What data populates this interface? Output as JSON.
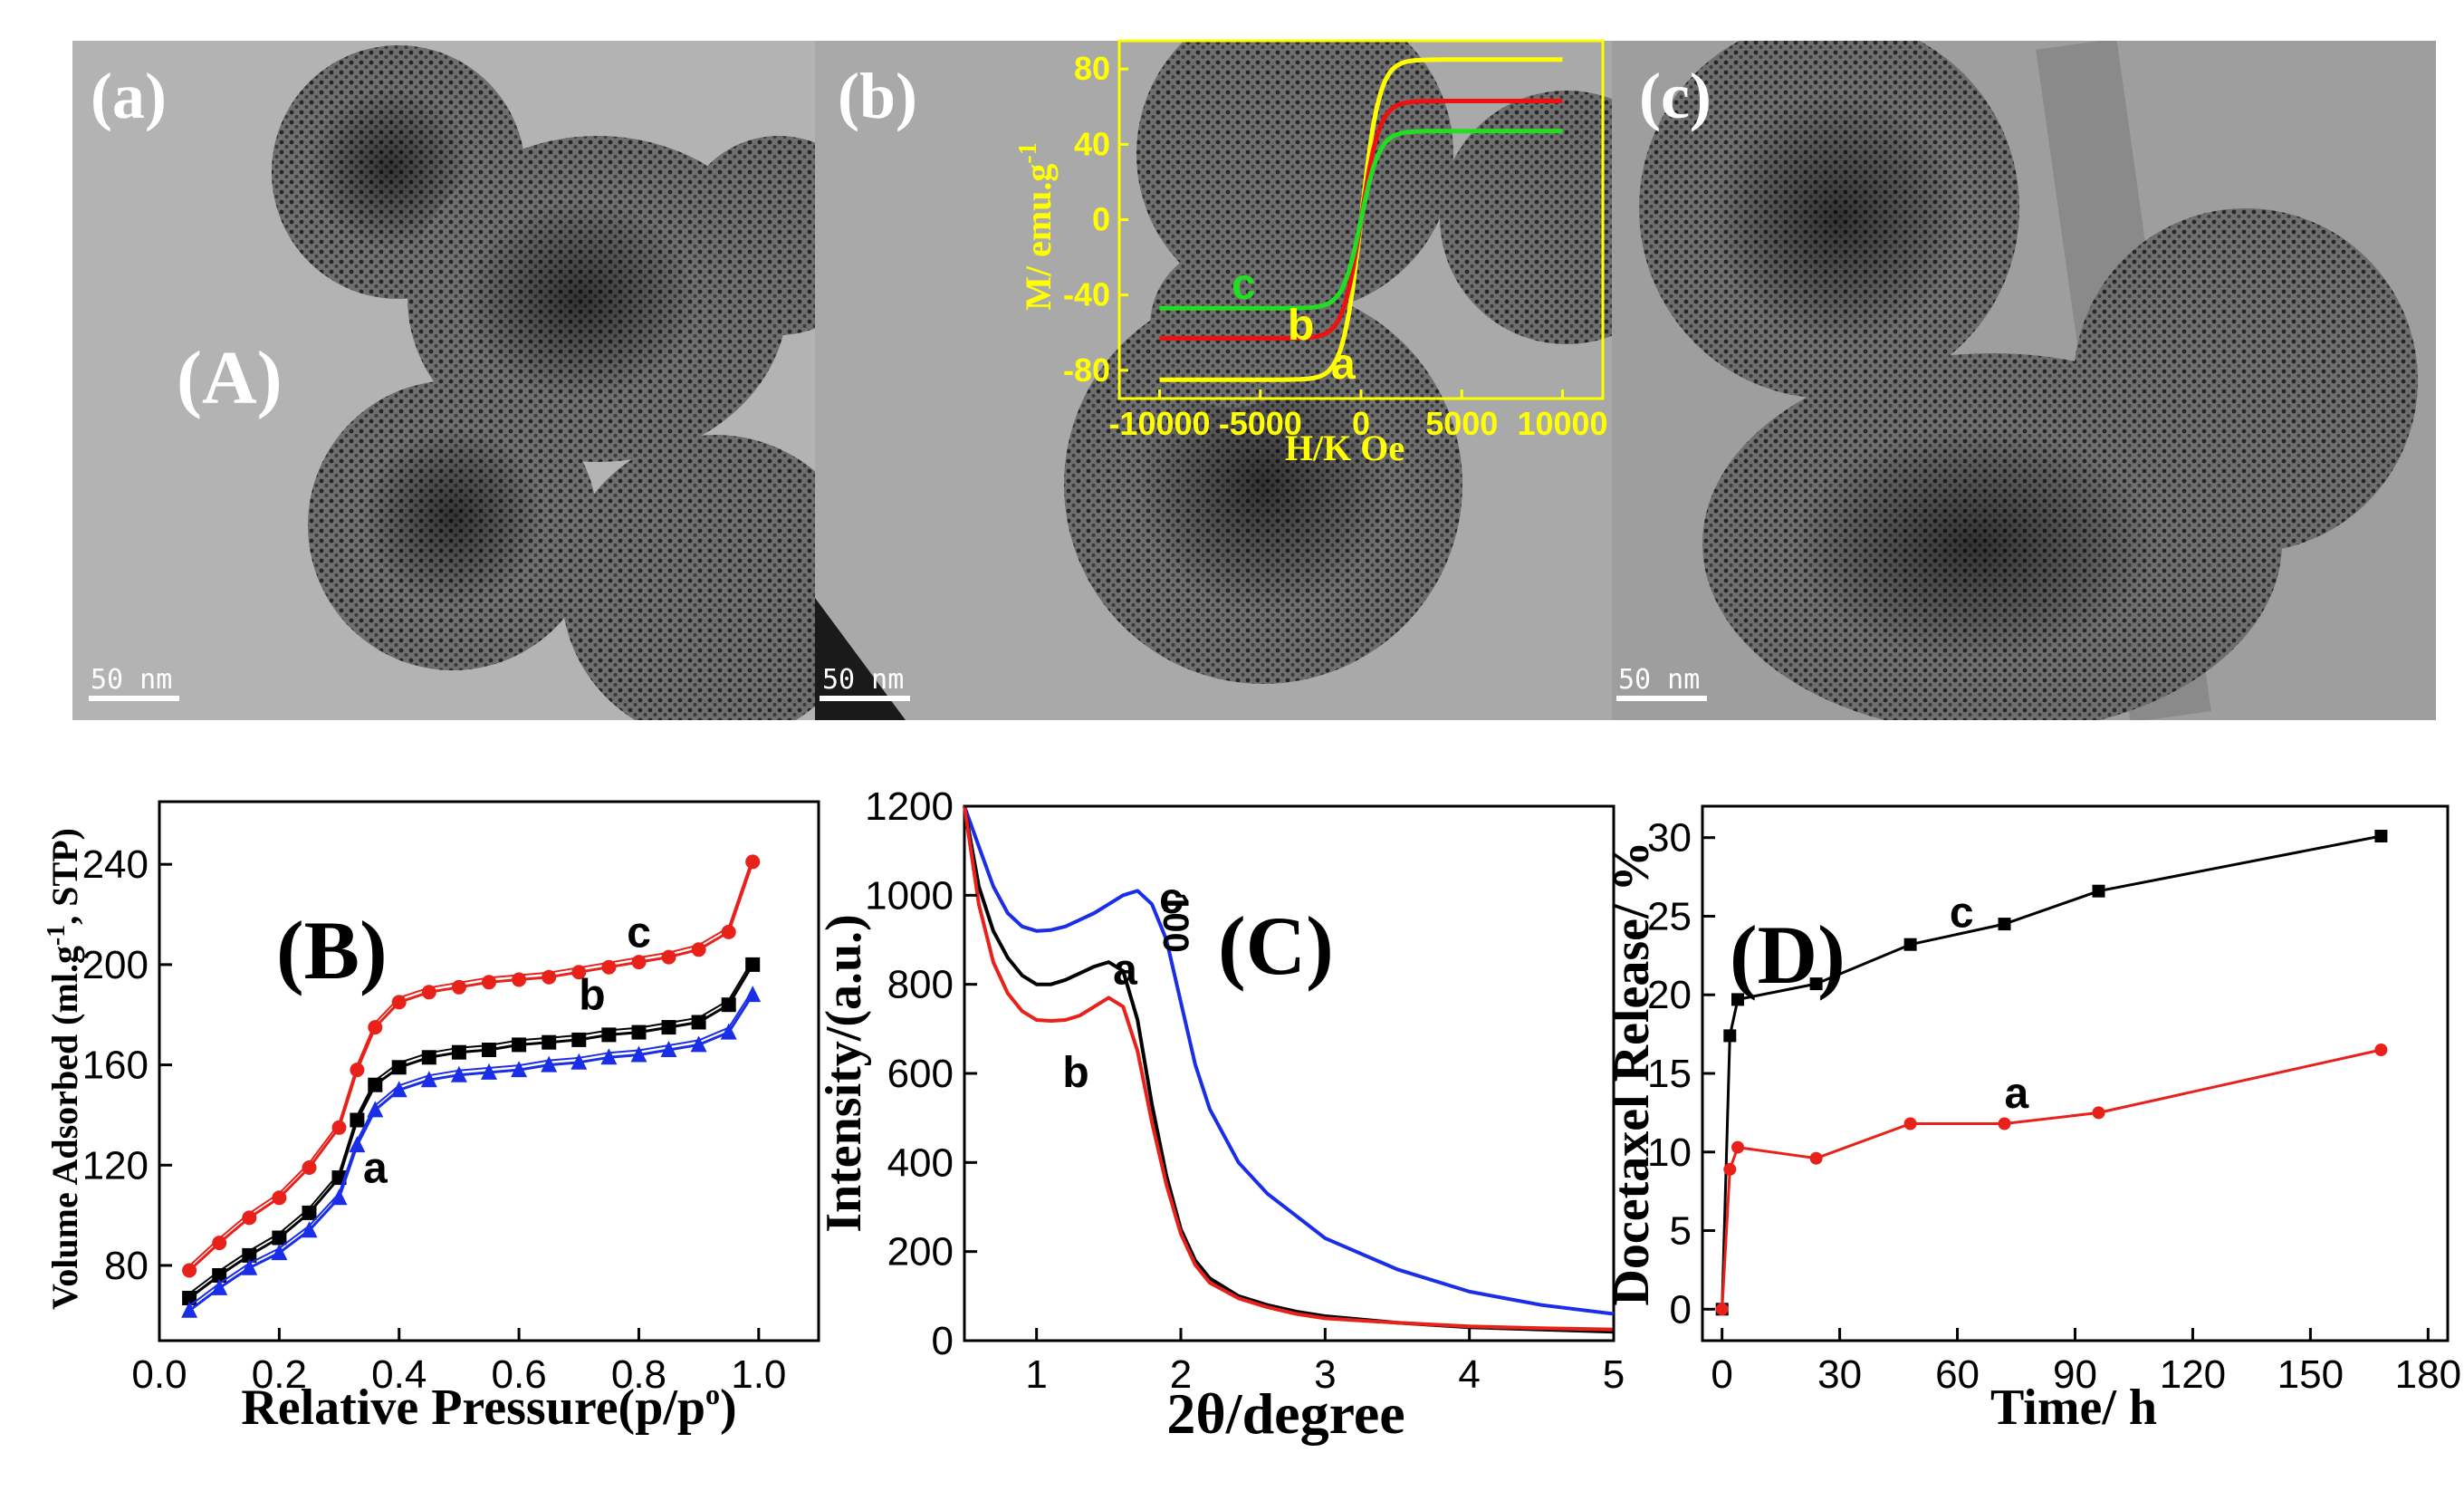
{
  "tem": {
    "panels": [
      {
        "label": "(a)",
        "scale_bar": "50 nm"
      },
      {
        "label": "(b)",
        "scale_bar": "50 nm"
      },
      {
        "label": "(c)",
        "scale_bar": "50 nm"
      }
    ],
    "figure_label": "(A)"
  },
  "colors": {
    "red": "#e8211a",
    "black": "#000000",
    "blue": "#1a2ee8",
    "yellow": "#ffff00",
    "green": "#22dd22",
    "inset_red": "#ee1111"
  },
  "chart_data": [
    {
      "id": "inset",
      "type": "line",
      "xlabel": "H/K Oe",
      "ylabel": "M/ emu.g-1",
      "xlim": [
        -12000,
        12000
      ],
      "ylim": [
        -95,
        95
      ],
      "xticks": [
        "-10000",
        "-5000",
        "0",
        "5000",
        "10000"
      ],
      "yticks": [
        "-80",
        "-40",
        "0",
        "40",
        "80"
      ],
      "series": [
        {
          "name": "a",
          "Ms": 85
        },
        {
          "name": "b",
          "Ms": 63
        },
        {
          "name": "c",
          "Ms": 47
        }
      ]
    },
    {
      "id": "B",
      "panel_label": "(B)",
      "type": "line",
      "xlabel": "Relative Pressure(p/p°)",
      "ylabel": "Volume Adsorbed (ml.g-1, STP)",
      "xlim": [
        0.0,
        1.1
      ],
      "ylim": [
        50,
        265
      ],
      "xticks": [
        "0.0",
        "0.2",
        "0.4",
        "0.6",
        "0.8",
        "1.0"
      ],
      "yticks": [
        "80",
        "120",
        "160",
        "200",
        "240"
      ],
      "series": [
        {
          "name": "c",
          "marker": "circle",
          "x": [
            0.05,
            0.1,
            0.15,
            0.2,
            0.25,
            0.3,
            0.33,
            0.36,
            0.4,
            0.45,
            0.5,
            0.55,
            0.6,
            0.65,
            0.7,
            0.75,
            0.8,
            0.85,
            0.9,
            0.95,
            0.99
          ],
          "y": [
            78,
            89,
            99,
            107,
            119,
            135,
            158,
            175,
            185,
            189,
            191,
            193,
            194,
            195,
            197,
            199,
            201,
            203,
            206,
            213,
            241
          ]
        },
        {
          "name": "b",
          "marker": "square",
          "x": [
            0.05,
            0.1,
            0.15,
            0.2,
            0.25,
            0.3,
            0.33,
            0.36,
            0.4,
            0.45,
            0.5,
            0.55,
            0.6,
            0.65,
            0.7,
            0.75,
            0.8,
            0.85,
            0.9,
            0.95,
            0.99
          ],
          "y": [
            67,
            76,
            84,
            91,
            101,
            115,
            138,
            152,
            159,
            163,
            165,
            166,
            168,
            169,
            170,
            172,
            173,
            175,
            177,
            184,
            200
          ]
        },
        {
          "name": "a",
          "marker": "triangle",
          "x": [
            0.05,
            0.1,
            0.15,
            0.2,
            0.25,
            0.3,
            0.33,
            0.36,
            0.4,
            0.45,
            0.5,
            0.55,
            0.6,
            0.65,
            0.7,
            0.75,
            0.8,
            0.85,
            0.9,
            0.95,
            0.99
          ],
          "y": [
            62,
            71,
            79,
            85,
            94,
            107,
            128,
            142,
            150,
            154,
            156,
            157,
            158,
            160,
            161,
            163,
            164,
            166,
            168,
            173,
            188
          ]
        }
      ]
    },
    {
      "id": "C",
      "panel_label": "(C)",
      "type": "line",
      "xlabel": "2θ/degree",
      "ylabel": "Intensity/(a.u.)",
      "xlim": [
        0.5,
        5.0
      ],
      "ylim": [
        0,
        1200
      ],
      "xticks": [
        "1",
        "2",
        "3",
        "4",
        "5"
      ],
      "yticks": [
        "0",
        "200",
        "400",
        "600",
        "800",
        "1000",
        "1200"
      ],
      "annotation": "100",
      "series": [
        {
          "name": "c",
          "x": [
            0.5,
            0.6,
            0.7,
            0.8,
            0.9,
            1.0,
            1.1,
            1.2,
            1.3,
            1.4,
            1.5,
            1.6,
            1.7,
            1.8,
            1.9,
            2.0,
            2.1,
            2.2,
            2.4,
            2.6,
            2.8,
            3.0,
            3.5,
            4.0,
            4.5,
            5.0
          ],
          "y": [
            1200,
            1110,
            1020,
            960,
            930,
            920,
            922,
            930,
            945,
            960,
            980,
            1000,
            1010,
            980,
            900,
            760,
            620,
            520,
            400,
            330,
            280,
            230,
            160,
            110,
            80,
            60
          ]
        },
        {
          "name": "a",
          "x": [
            0.5,
            0.6,
            0.7,
            0.8,
            0.9,
            1.0,
            1.1,
            1.2,
            1.3,
            1.4,
            1.5,
            1.6,
            1.7,
            1.8,
            1.9,
            2.0,
            2.1,
            2.2,
            2.4,
            2.6,
            2.8,
            3.0,
            3.5,
            4.0,
            4.5,
            5.0
          ],
          "y": [
            1200,
            1020,
            920,
            860,
            820,
            800,
            800,
            810,
            825,
            840,
            850,
            830,
            720,
            530,
            370,
            250,
            180,
            140,
            100,
            80,
            65,
            55,
            40,
            30,
            25,
            20
          ]
        },
        {
          "name": "b",
          "x": [
            0.5,
            0.6,
            0.7,
            0.8,
            0.9,
            1.0,
            1.1,
            1.2,
            1.3,
            1.4,
            1.5,
            1.6,
            1.7,
            1.8,
            1.9,
            2.0,
            2.1,
            2.2,
            2.4,
            2.6,
            2.8,
            3.0,
            3.5,
            4.0,
            4.5,
            5.0
          ],
          "y": [
            1200,
            980,
            850,
            780,
            740,
            720,
            718,
            720,
            730,
            750,
            770,
            750,
            650,
            490,
            350,
            240,
            170,
            130,
            95,
            75,
            60,
            50,
            40,
            32,
            28,
            25
          ]
        }
      ]
    },
    {
      "id": "D",
      "panel_label": "(D)",
      "type": "line",
      "xlabel": "Time/ h",
      "ylabel": "Docetaxel Release/ %",
      "xlim": [
        -5,
        185
      ],
      "ylim": [
        -2,
        32
      ],
      "xticks": [
        "0",
        "30",
        "60",
        "90",
        "120",
        "150",
        "180"
      ],
      "yticks": [
        "0",
        "5",
        "10",
        "15",
        "20",
        "25",
        "30"
      ],
      "series": [
        {
          "name": "c",
          "marker": "square",
          "x": [
            0,
            2,
            4,
            24,
            48,
            72,
            96,
            168
          ],
          "y": [
            0,
            17.4,
            19.7,
            20.7,
            23.2,
            24.5,
            26.6,
            30.1
          ]
        },
        {
          "name": "a",
          "marker": "circle",
          "x": [
            0,
            2,
            4,
            24,
            48,
            72,
            96,
            168
          ],
          "y": [
            0,
            8.9,
            10.3,
            9.6,
            11.8,
            11.8,
            12.5,
            16.5
          ]
        }
      ]
    }
  ]
}
